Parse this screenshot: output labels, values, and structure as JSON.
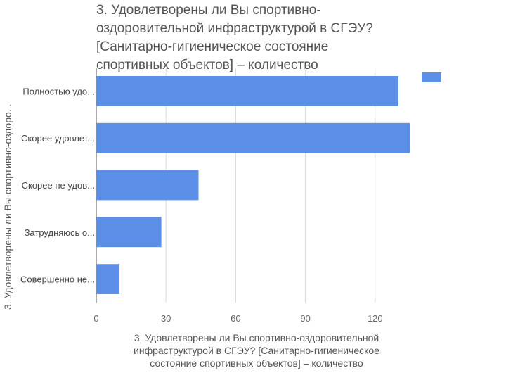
{
  "chart_data": {
    "type": "bar",
    "orientation": "horizontal",
    "title": "3. Удовлетворены ли Вы спортивно-\nоздоровительной инфраструктурой в СГЭУ?\n[Санитарно-гигиеническое состояние\nспортивных объектов] – количество",
    "categories": [
      "Полностью удо...",
      "Скорее удовлет...",
      "Скорее не удов...",
      "Затрудняюсь о...",
      "Совершенно не..."
    ],
    "values": [
      130,
      135,
      44,
      28,
      10
    ],
    "xlabel": "3. Удовлетворены ли Вы спортивно-оздоровительной\nинфраструктурой в СГЭУ? [Санитарно-гигиеническое\nсостояние спортивных объектов] – количество",
    "ylabel": "3. Удовлетворены ли Вы спортивно-оздоро...",
    "xticks": [
      "0",
      "30",
      "60",
      "90",
      "120"
    ],
    "tick_values": [
      0,
      30,
      60,
      90,
      120
    ],
    "xlim": [
      0,
      150
    ],
    "bar_color": "#5b8fe8",
    "grid": true,
    "legend": "top-right"
  }
}
